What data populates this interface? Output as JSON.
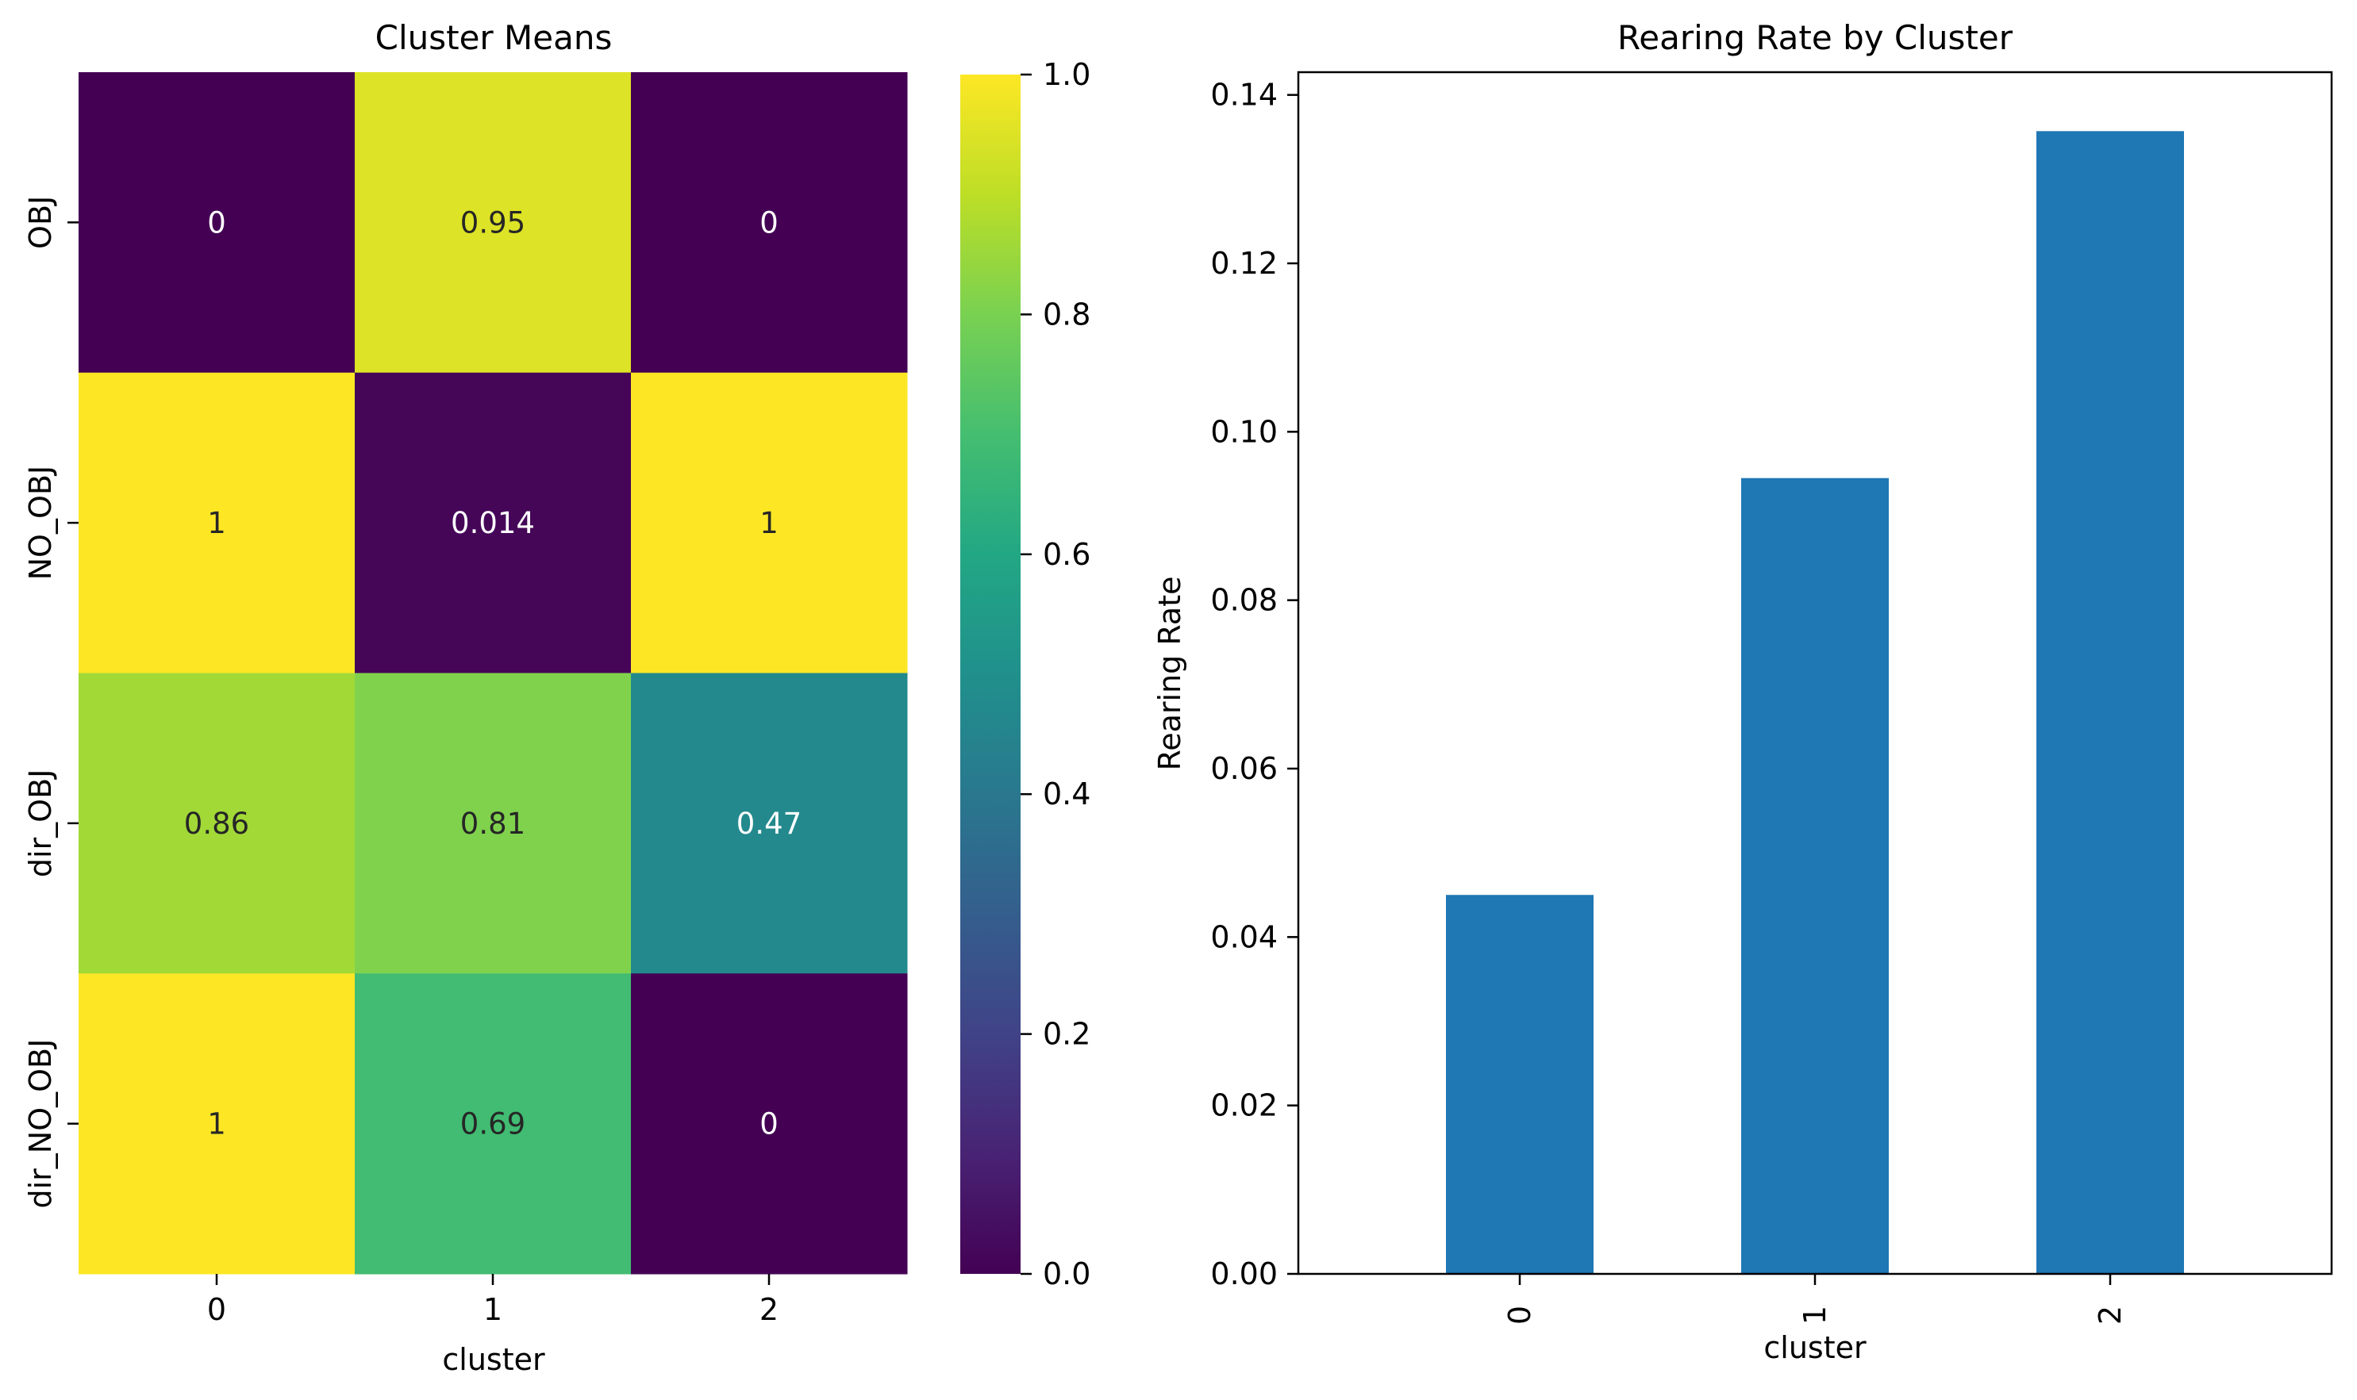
{
  "chart_data": [
    {
      "type": "heatmap",
      "title": "Cluster Means",
      "xlabel": "cluster",
      "ylabel": "",
      "x_categories": [
        "0",
        "1",
        "2"
      ],
      "y_categories": [
        "OBJ",
        "NO_OBJ",
        "dir_OBJ",
        "dir_NO_OBJ"
      ],
      "values": [
        [
          0,
          0.95,
          0
        ],
        [
          1,
          0.014,
          1
        ],
        [
          0.86,
          0.81,
          0.47
        ],
        [
          1,
          0.69,
          0
        ]
      ],
      "cell_labels": [
        [
          "0",
          "0.95",
          "0"
        ],
        [
          "1",
          "0.014",
          "1"
        ],
        [
          "0.86",
          "0.81",
          "0.47"
        ],
        [
          "1",
          "0.69",
          "0"
        ]
      ],
      "colormap": "viridis",
      "colorbar": {
        "range": [
          0.0,
          1.0
        ],
        "ticks": [
          0.0,
          0.2,
          0.4,
          0.6,
          0.8,
          1.0
        ],
        "tick_labels": [
          "0.0",
          "0.2",
          "0.4",
          "0.6",
          "0.8",
          "1.0"
        ]
      }
    },
    {
      "type": "bar",
      "title": "Rearing Rate by Cluster",
      "xlabel": "cluster",
      "ylabel": "Rearing Rate",
      "categories": [
        "0",
        "1",
        "2"
      ],
      "values": [
        0.045,
        0.0945,
        0.1357
      ],
      "ylim": [
        0,
        0.1427
      ],
      "yticks": [
        0.0,
        0.02,
        0.04,
        0.06,
        0.08,
        0.1,
        0.12,
        0.14
      ],
      "ytick_labels": [
        "0.00",
        "0.02",
        "0.04",
        "0.06",
        "0.08",
        "0.10",
        "0.12",
        "0.14"
      ],
      "bar_color": "#1f77b4",
      "grid": false,
      "xtick_rotation": "vertical"
    }
  ]
}
